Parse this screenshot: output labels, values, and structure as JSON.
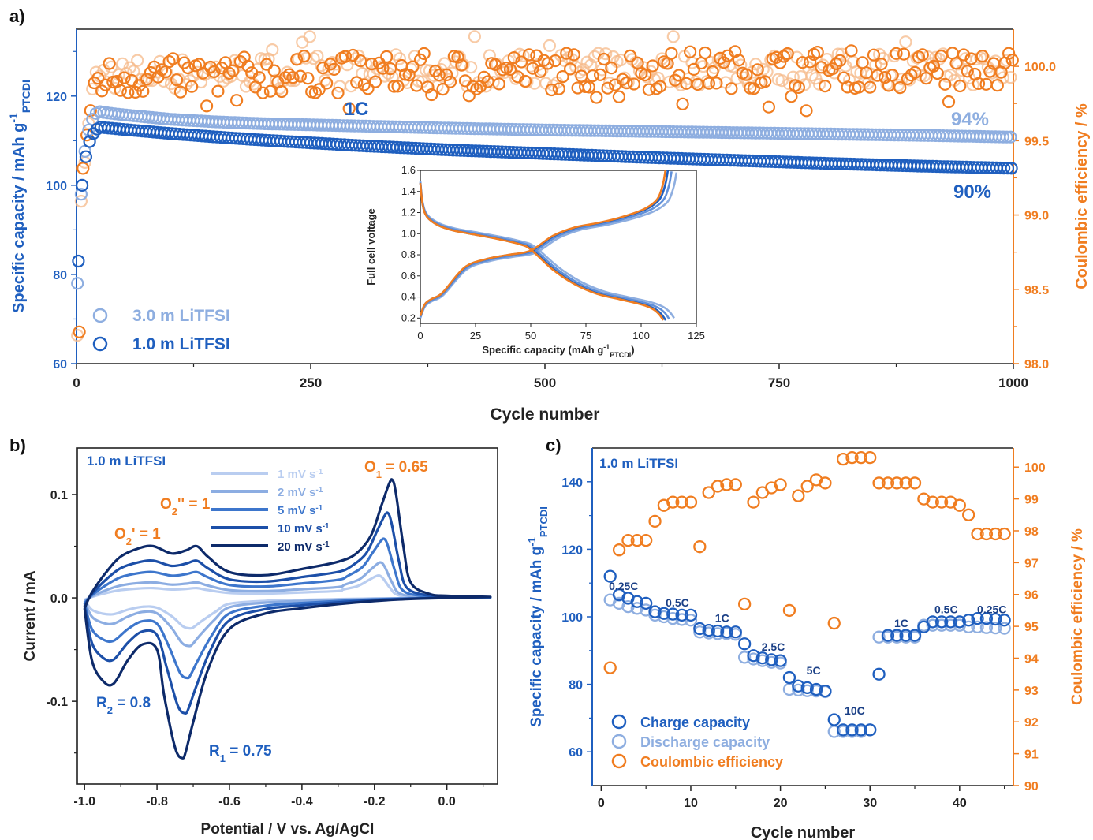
{
  "colors": {
    "dark_blue": "#1f5fbf",
    "light_blue": "#8eaee0",
    "orange": "#f07d20",
    "light_orange": "#f6b98a",
    "navy": "#0b2a6b",
    "cv_1": "#b9cdf0",
    "cv_2": "#8cade2",
    "cv_5": "#3d76cc",
    "cv_10": "#1c4fa8",
    "cv_20": "#0d2a6a"
  },
  "chart_data": [
    {
      "panel": "a)",
      "type": "scatter",
      "xlabel": "Cycle number",
      "ylabel": "Specific capacity / mAh g-1 PTCDI",
      "ylabel_main": "Specific capacity / mAh g",
      "ylabel_sup": "-1",
      "ylabel_sub": "PTCDI",
      "y2label": "Coulombic efficiency / %",
      "xlim": [
        0,
        1000
      ],
      "ylim": [
        60,
        135
      ],
      "y2lim": [
        98.0,
        100.25
      ],
      "xticks": [
        "0",
        "250",
        "500",
        "750",
        "1000"
      ],
      "yticks": [
        "60",
        "80",
        "100",
        "120"
      ],
      "y2ticks": [
        "98.0",
        "98.5",
        "99.0",
        "99.5",
        "100.0"
      ],
      "annotations": [
        "1C",
        "94%",
        "90%"
      ],
      "series": [
        {
          "name": "3.0 m LiTFSI",
          "axis": "capacity",
          "x": [
            1,
            5,
            10,
            15,
            20,
            25,
            30,
            50,
            100,
            150,
            200,
            300,
            400,
            500,
            600,
            700,
            800,
            900,
            1000
          ],
          "y": [
            78,
            98,
            110,
            114,
            116,
            116.5,
            116.3,
            115.8,
            114.8,
            114.2,
            113.8,
            113.3,
            112.8,
            112.4,
            112.1,
            111.8,
            111.5,
            111.2,
            110.8
          ]
        },
        {
          "name": "1.0 m LiTFSI",
          "axis": "capacity",
          "x": [
            1,
            5,
            10,
            15,
            20,
            25,
            30,
            50,
            100,
            150,
            200,
            300,
            400,
            500,
            600,
            700,
            800,
            900,
            1000
          ],
          "y": [
            83,
            100,
            108,
            111,
            112.5,
            113,
            112.9,
            112.5,
            111.6,
            110.8,
            110.1,
            108.9,
            107.9,
            107.1,
            106.3,
            105.6,
            104.9,
            104.3,
            103.8
          ]
        },
        {
          "name": "3.0 m LiTFSI CE",
          "axis": "efficiency",
          "x": [
            1,
            5,
            10,
            15,
            20,
            30,
            50,
            100,
            200,
            300,
            400,
            500,
            600,
            700,
            800,
            900,
            1000
          ],
          "y": [
            98.3,
            99.0,
            99.5,
            99.8,
            99.9,
            99.95,
            99.95,
            99.95,
            99.96,
            99.97,
            99.97,
            99.98,
            99.98,
            99.98,
            99.98,
            99.98,
            99.98
          ]
        },
        {
          "name": "1.0 m LiTFSI CE",
          "axis": "efficiency",
          "x": [
            1,
            5,
            10,
            15,
            20,
            30,
            50,
            100,
            200,
            300,
            400,
            500,
            600,
            700,
            800,
            900,
            1000
          ],
          "y": [
            98.2,
            99.2,
            99.6,
            99.85,
            99.9,
            99.92,
            99.93,
            99.93,
            99.94,
            99.95,
            99.96,
            99.97,
            99.97,
            99.98,
            99.98,
            99.98,
            99.98
          ]
        }
      ],
      "legend": [
        "3.0 m LiTFSI",
        "1.0 m LiTFSI"
      ],
      "inset": {
        "type": "line",
        "xlabel": "Specific capacity (mAh g-1PTCDI)",
        "xlabel_main": "Specific capacity (mAh g",
        "xlabel_sup": "-1",
        "xlabel_sub": "PTCDI",
        "xlabel_end": ")",
        "ylabel": "Full cell voltage",
        "xlim": [
          0,
          125
        ],
        "ylim": [
          0.15,
          1.6
        ],
        "xticks": [
          "0",
          "25",
          "50",
          "75",
          "100",
          "125"
        ],
        "yticks": [
          "0.2",
          "0.4",
          "0.6",
          "0.8",
          "1.0",
          "1.2",
          "1.4",
          "1.6"
        ],
        "charge": {
          "x": [
            0,
            2,
            5,
            10,
            20,
            30,
            40,
            50,
            60,
            70,
            80,
            90,
            100,
            105,
            108,
            110,
            111
          ],
          "y": [
            0.22,
            0.33,
            0.38,
            0.44,
            0.68,
            0.76,
            0.8,
            0.84,
            0.98,
            1.06,
            1.1,
            1.15,
            1.22,
            1.28,
            1.35,
            1.48,
            1.6
          ]
        },
        "discharge": {
          "x": [
            0,
            1,
            3,
            8,
            15,
            25,
            35,
            45,
            50,
            60,
            70,
            80,
            90,
            100,
            105,
            108,
            110
          ],
          "y": [
            1.48,
            1.28,
            1.16,
            1.08,
            1.03,
            0.99,
            0.95,
            0.9,
            0.85,
            0.66,
            0.52,
            0.43,
            0.38,
            0.33,
            0.29,
            0.24,
            0.18
          ]
        }
      }
    },
    {
      "panel": "b)",
      "type": "line",
      "xlabel": "Potential / V vs. Ag/AgCl",
      "ylabel": "Current / mA",
      "xlim": [
        -1.02,
        0.14
      ],
      "ylim": [
        -0.18,
        0.145
      ],
      "xticks": [
        "-1.0",
        "-0.8",
        "-0.6",
        "-0.4",
        "-0.2",
        "0.0"
      ],
      "yticks": [
        "-0.1",
        "0.0",
        "0.1"
      ],
      "label": "1.0 m LiTFSI",
      "annotations": [
        "O1 = 0.65",
        "O2'' = 1",
        "O2' = 1",
        "R2 = 0.8",
        "R1 = 0.75"
      ],
      "peak_labels": {
        "o1": {
          "main": "O",
          "sub": "1",
          "rest": " = 0.65"
        },
        "o2pp": {
          "main": "O",
          "sub": "2",
          "rest": "'' = 1"
        },
        "o2p": {
          "main": "O",
          "sub": "2",
          "rest": "' = 1"
        },
        "r2": {
          "main": "R",
          "sub": "2",
          "rest": " = 0.8"
        },
        "r1": {
          "main": "R",
          "sub": "1",
          "rest": " = 0.75"
        }
      },
      "series": [
        {
          "name": "1 mV s-1",
          "label_main": "1 mV s",
          "label_sup": "-1",
          "scale": 0.19
        },
        {
          "name": "2 mV s-1",
          "label_main": "2 mV s",
          "label_sup": "-1",
          "scale": 0.3
        },
        {
          "name": "5 mV s-1",
          "label_main": "5 mV s",
          "label_sup": "-1",
          "scale": 0.5
        },
        {
          "name": "10 mV s-1",
          "label_main": "10 mV s",
          "label_sup": "-1",
          "scale": 0.72
        },
        {
          "name": "20 mV s-1",
          "label_main": "20 mV s",
          "label_sup": "-1",
          "scale": 1.0
        }
      ],
      "reference_curve_20mV": {
        "forward_x": [
          -1.0,
          -0.98,
          -0.94,
          -0.9,
          -0.85,
          -0.81,
          -0.76,
          -0.72,
          -0.69,
          -0.66,
          -0.6,
          -0.5,
          -0.4,
          -0.3,
          -0.25,
          -0.21,
          -0.18,
          -0.16,
          -0.15,
          -0.14,
          -0.12,
          -0.1,
          -0.05,
          0.0,
          0.12
        ],
        "forward_y": [
          -0.01,
          0.005,
          0.025,
          0.04,
          0.048,
          0.05,
          0.043,
          0.046,
          0.05,
          0.04,
          0.025,
          0.022,
          0.028,
          0.035,
          0.043,
          0.06,
          0.09,
          0.11,
          0.114,
          0.1,
          0.05,
          0.015,
          0.004,
          0.002,
          0.001
        ],
        "reverse_x": [
          0.12,
          0.0,
          -0.1,
          -0.2,
          -0.3,
          -0.4,
          -0.5,
          -0.6,
          -0.66,
          -0.7,
          -0.72,
          -0.73,
          -0.75,
          -0.78,
          -0.8,
          -0.84,
          -0.88,
          -0.92,
          -0.95,
          -0.98,
          -1.0
        ],
        "reverse_y": [
          0.001,
          0.0,
          -0.001,
          -0.003,
          -0.006,
          -0.01,
          -0.015,
          -0.03,
          -0.07,
          -0.12,
          -0.148,
          -0.155,
          -0.145,
          -0.095,
          -0.05,
          -0.045,
          -0.06,
          -0.083,
          -0.08,
          -0.06,
          -0.01
        ]
      }
    },
    {
      "panel": "c)",
      "type": "scatter",
      "xlabel": "Cycle number",
      "ylabel": "Specific capacity / mAh g-1PTCDI",
      "ylabel_main": "Specific capacity / mAh g",
      "ylabel_sup": "-1",
      "ylabel_sub": "PTCDI",
      "y2label": "Coulombic efficiency / %",
      "xlim": [
        -1,
        46
      ],
      "ylim": [
        50,
        150
      ],
      "y2lim": [
        90,
        100.6
      ],
      "xticks": [
        "0",
        "10",
        "20",
        "30",
        "40"
      ],
      "yticks": [
        "60",
        "80",
        "100",
        "120",
        "140"
      ],
      "y2ticks": [
        "90",
        "91",
        "92",
        "93",
        "94",
        "95",
        "96",
        "97",
        "98",
        "99",
        "100"
      ],
      "label": "1.0 m LiTFSI",
      "rate_labels": [
        {
          "text": "0.25C",
          "x": 2.5,
          "y": 108
        },
        {
          "text": "0.5C",
          "x": 8.5,
          "y": 103
        },
        {
          "text": "1C",
          "x": 13.5,
          "y": 98.5
        },
        {
          "text": "2.5C",
          "x": 19.2,
          "y": 90
        },
        {
          "text": "5C",
          "x": 23.7,
          "y": 83
        },
        {
          "text": "10C",
          "x": 28.3,
          "y": 71
        },
        {
          "text": "1C",
          "x": 33.5,
          "y": 97
        },
        {
          "text": "0.5C",
          "x": 38.5,
          "y": 101
        },
        {
          "text": "0.25C",
          "x": 43.6,
          "y": 101
        }
      ],
      "x": [
        1,
        2,
        3,
        4,
        5,
        6,
        7,
        8,
        9,
        10,
        11,
        12,
        13,
        14,
        15,
        16,
        17,
        18,
        19,
        20,
        21,
        22,
        23,
        24,
        25,
        26,
        27,
        28,
        29,
        30,
        31,
        32,
        33,
        34,
        35,
        36,
        37,
        38,
        39,
        40,
        41,
        42,
        43,
        44,
        45
      ],
      "series": [
        {
          "name": "Charge capacity",
          "axis": "capacity",
          "values": [
            112,
            106.5,
            105.5,
            104.5,
            104,
            101.5,
            101,
            100.8,
            100.5,
            100.5,
            96.5,
            96,
            95.8,
            95.5,
            95.5,
            92,
            88.5,
            87.8,
            87.3,
            87,
            82,
            79.5,
            79,
            78.5,
            78,
            69.5,
            66.5,
            66.5,
            66.5,
            66.5,
            83,
            94.5,
            94.5,
            94.5,
            94.5,
            97,
            98.5,
            98.5,
            98.5,
            98.5,
            99,
            99.5,
            99.5,
            99.3,
            99
          ]
        },
        {
          "name": "Discharge capacity",
          "axis": "capacity",
          "values": [
            105,
            104,
            103,
            102.5,
            102,
            100.5,
            100,
            99.5,
            99.2,
            99,
            95.5,
            95.2,
            95,
            95,
            94.8,
            88,
            87.5,
            87,
            86.5,
            86.3,
            78.5,
            78.3,
            78.1,
            78,
            77.8,
            66,
            66,
            66,
            66,
            66.5,
            94,
            94,
            94,
            94,
            94,
            97.5,
            97.5,
            97.5,
            97.5,
            97.5,
            97,
            97,
            96.8,
            96.7,
            96.6
          ]
        },
        {
          "name": "Coulombic efficiency",
          "axis": "efficiency",
          "values": [
            93.7,
            97.4,
            97.7,
            97.7,
            97.7,
            98.3,
            98.8,
            98.9,
            98.9,
            98.9,
            97.5,
            99.2,
            99.4,
            99.45,
            99.45,
            95.7,
            98.9,
            99.2,
            99.35,
            99.45,
            95.5,
            99.1,
            99.4,
            99.6,
            99.5,
            95.1,
            100.25,
            100.3,
            100.3,
            100.3,
            99.5,
            99.5,
            99.5,
            99.5,
            99.5,
            99,
            98.9,
            98.9,
            98.9,
            98.8,
            98.5,
            97.9,
            97.9,
            97.9,
            97.9
          ]
        }
      ],
      "legend": [
        "Charge capacity",
        "Discharge capacity",
        "Coulombic efficiency"
      ]
    }
  ]
}
